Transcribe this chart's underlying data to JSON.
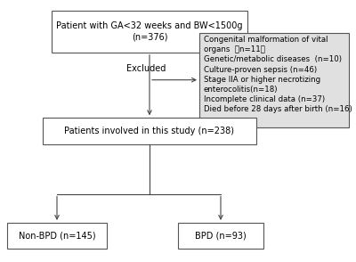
{
  "bg_color": "#ffffff",
  "box_top_text": "Patient with GA<32 weeks and BW<1500g\n(n=376)",
  "box_mid_text": "Patients involved in this study (n=238)",
  "box_left_text": "Non-BPD (n=145)",
  "box_right_text": "BPD (n=93)",
  "excluded_label": "Excluded",
  "excluded_box_lines": [
    "Congenital malformation of vital",
    "organs  （n=11）",
    "Genetic/metabolic diseases  (n=10)",
    "Culture-proven sepsis (n=46)",
    "Stage IIA or higher necrotizing",
    "enterocolitis(n=18)",
    "Incomplete clinical data (n=37)",
    "Died before 28 days after birth (n=16)"
  ],
  "font_size": 7.0,
  "font_size_excl": 6.2,
  "box_edge_color": "#555555",
  "arrow_color": "#444444",
  "box_face_color": "#ffffff",
  "excl_box_face_color": "#e0e0e0"
}
